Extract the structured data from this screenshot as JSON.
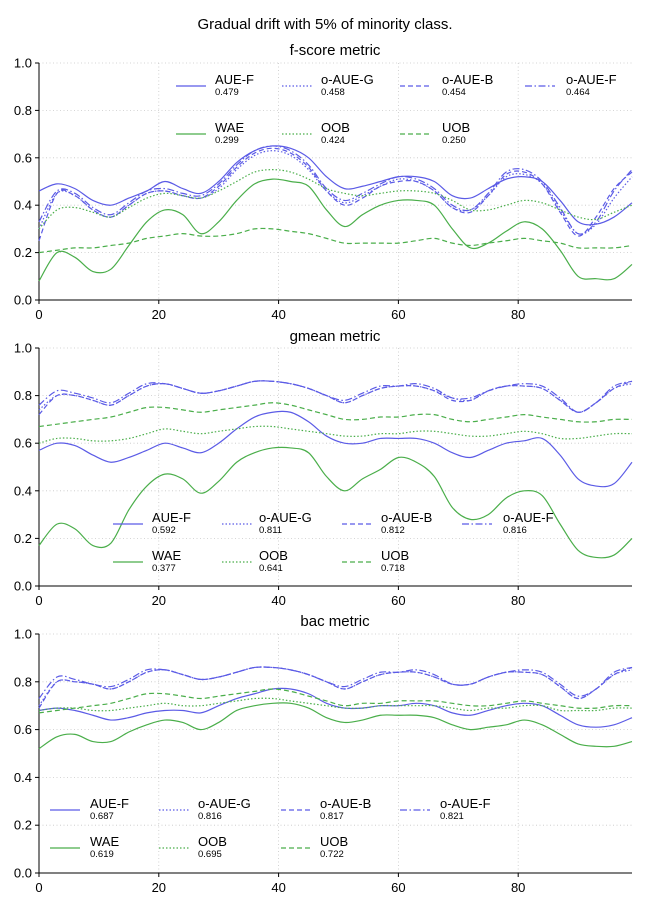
{
  "suptitle": "Gradual drift with 5% of minority class.",
  "chart_data": [
    {
      "type": "line",
      "title": "f-score metric",
      "xlabel": "",
      "ylabel": "",
      "xlim": [
        0,
        99
      ],
      "ylim": [
        0,
        1.0
      ],
      "xticks": [
        "0",
        "20",
        "40",
        "60",
        "80"
      ],
      "yticks": [
        "0.0",
        "0.2",
        "0.4",
        "0.6",
        "0.8",
        "1.0"
      ],
      "grid": true,
      "legend": "top",
      "x": [
        0,
        3,
        6,
        9,
        12,
        15,
        18,
        21,
        24,
        27,
        30,
        33,
        36,
        39,
        42,
        45,
        48,
        51,
        54,
        57,
        60,
        63,
        66,
        69,
        72,
        75,
        78,
        81,
        84,
        87,
        90,
        93,
        96,
        99
      ],
      "series": [
        {
          "name": "AUE-F",
          "score": "0.479",
          "color": "#5b5be6",
          "dash": "solid",
          "values": [
            0.46,
            0.49,
            0.47,
            0.42,
            0.4,
            0.43,
            0.46,
            0.5,
            0.47,
            0.45,
            0.5,
            0.58,
            0.63,
            0.65,
            0.64,
            0.6,
            0.52,
            0.47,
            0.48,
            0.5,
            0.52,
            0.52,
            0.5,
            0.44,
            0.43,
            0.47,
            0.51,
            0.52,
            0.5,
            0.42,
            0.33,
            0.32,
            0.35,
            0.41
          ]
        },
        {
          "name": "o-AUE-G",
          "score": "0.458",
          "color": "#5b5be6",
          "dash": "dot",
          "values": [
            0.3,
            0.45,
            0.44,
            0.38,
            0.35,
            0.4,
            0.45,
            0.46,
            0.44,
            0.43,
            0.47,
            0.55,
            0.61,
            0.63,
            0.61,
            0.55,
            0.46,
            0.41,
            0.44,
            0.48,
            0.51,
            0.5,
            0.46,
            0.39,
            0.38,
            0.44,
            0.52,
            0.53,
            0.49,
            0.38,
            0.28,
            0.32,
            0.43,
            0.52
          ]
        },
        {
          "name": "o-AUE-B",
          "score": "0.454",
          "color": "#5b5be6",
          "dash": "dash",
          "values": [
            0.25,
            0.45,
            0.44,
            0.38,
            0.35,
            0.4,
            0.45,
            0.46,
            0.44,
            0.43,
            0.48,
            0.56,
            0.62,
            0.64,
            0.62,
            0.56,
            0.46,
            0.4,
            0.43,
            0.48,
            0.5,
            0.5,
            0.46,
            0.39,
            0.37,
            0.44,
            0.53,
            0.54,
            0.49,
            0.37,
            0.27,
            0.35,
            0.47,
            0.54
          ]
        },
        {
          "name": "o-AUE-F",
          "score": "0.464",
          "color": "#5b5be6",
          "dash": "dashdot",
          "values": [
            0.33,
            0.46,
            0.45,
            0.39,
            0.36,
            0.41,
            0.46,
            0.47,
            0.45,
            0.44,
            0.49,
            0.57,
            0.63,
            0.65,
            0.63,
            0.57,
            0.47,
            0.42,
            0.45,
            0.49,
            0.52,
            0.51,
            0.47,
            0.4,
            0.38,
            0.45,
            0.54,
            0.55,
            0.5,
            0.39,
            0.28,
            0.33,
            0.46,
            0.55
          ]
        },
        {
          "name": "WAE",
          "score": "0.299",
          "color": "#4aae4a",
          "dash": "solid",
          "values": [
            0.08,
            0.2,
            0.18,
            0.12,
            0.13,
            0.23,
            0.33,
            0.38,
            0.36,
            0.28,
            0.33,
            0.42,
            0.49,
            0.51,
            0.5,
            0.48,
            0.38,
            0.31,
            0.36,
            0.4,
            0.42,
            0.42,
            0.4,
            0.3,
            0.22,
            0.24,
            0.29,
            0.33,
            0.3,
            0.21,
            0.1,
            0.09,
            0.09,
            0.15
          ]
        },
        {
          "name": "OOB",
          "score": "0.424",
          "color": "#4aae4a",
          "dash": "dot",
          "values": [
            0.3,
            0.38,
            0.39,
            0.37,
            0.35,
            0.39,
            0.43,
            0.45,
            0.44,
            0.43,
            0.46,
            0.5,
            0.54,
            0.55,
            0.54,
            0.51,
            0.47,
            0.45,
            0.44,
            0.45,
            0.46,
            0.46,
            0.45,
            0.42,
            0.38,
            0.38,
            0.4,
            0.42,
            0.41,
            0.38,
            0.35,
            0.34,
            0.37,
            0.4
          ]
        },
        {
          "name": "UOB",
          "score": "0.250",
          "color": "#4aae4a",
          "dash": "dash",
          "values": [
            0.2,
            0.21,
            0.22,
            0.22,
            0.23,
            0.24,
            0.26,
            0.27,
            0.28,
            0.27,
            0.27,
            0.28,
            0.3,
            0.3,
            0.29,
            0.28,
            0.26,
            0.24,
            0.24,
            0.24,
            0.24,
            0.25,
            0.26,
            0.24,
            0.23,
            0.24,
            0.25,
            0.26,
            0.25,
            0.24,
            0.22,
            0.22,
            0.22,
            0.23
          ]
        }
      ]
    },
    {
      "type": "line",
      "title": "gmean metric",
      "xlabel": "",
      "ylabel": "",
      "xlim": [
        0,
        99
      ],
      "ylim": [
        0,
        1.0
      ],
      "xticks": [
        "0",
        "20",
        "40",
        "60",
        "80"
      ],
      "yticks": [
        "0.0",
        "0.2",
        "0.4",
        "0.6",
        "0.8",
        "1.0"
      ],
      "grid": true,
      "legend": "lower center",
      "x": [
        0,
        3,
        6,
        9,
        12,
        15,
        18,
        21,
        24,
        27,
        30,
        33,
        36,
        39,
        42,
        45,
        48,
        51,
        54,
        57,
        60,
        63,
        66,
        69,
        72,
        75,
        78,
        81,
        84,
        87,
        90,
        93,
        96,
        99
      ],
      "series": [
        {
          "name": "AUE-F",
          "score": "0.592",
          "color": "#5b5be6",
          "dash": "solid",
          "values": [
            0.57,
            0.6,
            0.59,
            0.55,
            0.52,
            0.54,
            0.57,
            0.6,
            0.58,
            0.56,
            0.6,
            0.66,
            0.71,
            0.73,
            0.73,
            0.69,
            0.63,
            0.6,
            0.6,
            0.62,
            0.62,
            0.62,
            0.6,
            0.56,
            0.54,
            0.57,
            0.6,
            0.61,
            0.62,
            0.55,
            0.45,
            0.42,
            0.43,
            0.52
          ]
        },
        {
          "name": "o-AUE-G",
          "score": "0.811",
          "color": "#5b5be6",
          "dash": "dot",
          "values": [
            0.74,
            0.8,
            0.8,
            0.78,
            0.76,
            0.8,
            0.84,
            0.85,
            0.83,
            0.81,
            0.82,
            0.84,
            0.86,
            0.86,
            0.85,
            0.83,
            0.8,
            0.77,
            0.8,
            0.83,
            0.84,
            0.84,
            0.82,
            0.79,
            0.78,
            0.82,
            0.84,
            0.84,
            0.83,
            0.78,
            0.73,
            0.77,
            0.83,
            0.85
          ]
        },
        {
          "name": "o-AUE-B",
          "score": "0.812",
          "color": "#5b5be6",
          "dash": "dash",
          "values": [
            0.72,
            0.8,
            0.8,
            0.78,
            0.76,
            0.8,
            0.84,
            0.85,
            0.83,
            0.81,
            0.82,
            0.84,
            0.86,
            0.86,
            0.85,
            0.83,
            0.8,
            0.77,
            0.8,
            0.83,
            0.84,
            0.84,
            0.82,
            0.78,
            0.78,
            0.82,
            0.84,
            0.84,
            0.83,
            0.78,
            0.73,
            0.77,
            0.83,
            0.86
          ]
        },
        {
          "name": "o-AUE-F",
          "score": "0.816",
          "color": "#5b5be6",
          "dash": "dashdot",
          "values": [
            0.76,
            0.82,
            0.81,
            0.79,
            0.77,
            0.81,
            0.85,
            0.85,
            0.83,
            0.81,
            0.82,
            0.84,
            0.86,
            0.86,
            0.85,
            0.83,
            0.8,
            0.78,
            0.81,
            0.84,
            0.84,
            0.85,
            0.83,
            0.79,
            0.79,
            0.82,
            0.84,
            0.85,
            0.84,
            0.79,
            0.73,
            0.77,
            0.84,
            0.86
          ]
        },
        {
          "name": "WAE",
          "score": "0.377",
          "color": "#4aae4a",
          "dash": "solid",
          "values": [
            0.17,
            0.26,
            0.24,
            0.17,
            0.18,
            0.32,
            0.42,
            0.47,
            0.45,
            0.39,
            0.44,
            0.52,
            0.56,
            0.58,
            0.58,
            0.56,
            0.46,
            0.4,
            0.45,
            0.49,
            0.54,
            0.52,
            0.46,
            0.33,
            0.28,
            0.3,
            0.37,
            0.4,
            0.38,
            0.26,
            0.15,
            0.12,
            0.13,
            0.2
          ]
        },
        {
          "name": "OOB",
          "score": "0.641",
          "color": "#4aae4a",
          "dash": "dot",
          "values": [
            0.6,
            0.62,
            0.62,
            0.61,
            0.61,
            0.62,
            0.64,
            0.66,
            0.65,
            0.64,
            0.65,
            0.66,
            0.67,
            0.67,
            0.66,
            0.65,
            0.64,
            0.63,
            0.63,
            0.64,
            0.64,
            0.65,
            0.65,
            0.64,
            0.63,
            0.63,
            0.64,
            0.65,
            0.64,
            0.62,
            0.62,
            0.63,
            0.64,
            0.64
          ]
        },
        {
          "name": "UOB",
          "score": "0.718",
          "color": "#4aae4a",
          "dash": "dash",
          "values": [
            0.67,
            0.68,
            0.69,
            0.7,
            0.71,
            0.73,
            0.75,
            0.75,
            0.74,
            0.73,
            0.74,
            0.75,
            0.76,
            0.77,
            0.76,
            0.74,
            0.72,
            0.7,
            0.7,
            0.71,
            0.71,
            0.72,
            0.72,
            0.7,
            0.69,
            0.7,
            0.71,
            0.72,
            0.71,
            0.7,
            0.69,
            0.69,
            0.7,
            0.7
          ]
        }
      ]
    },
    {
      "type": "line",
      "title": "bac metric",
      "xlabel": "",
      "ylabel": "",
      "xlim": [
        0,
        99
      ],
      "ylim": [
        0,
        1.0
      ],
      "xticks": [
        "0",
        "20",
        "40",
        "60",
        "80"
      ],
      "yticks": [
        "0.0",
        "0.2",
        "0.4",
        "0.6",
        "0.8",
        "1.0"
      ],
      "grid": true,
      "legend": "lower center",
      "x": [
        0,
        3,
        6,
        9,
        12,
        15,
        18,
        21,
        24,
        27,
        30,
        33,
        36,
        39,
        42,
        45,
        48,
        51,
        54,
        57,
        60,
        63,
        66,
        69,
        72,
        75,
        78,
        81,
        84,
        87,
        90,
        93,
        96,
        99
      ],
      "series": [
        {
          "name": "AUE-F",
          "score": "0.687",
          "color": "#5b5be6",
          "dash": "solid",
          "values": [
            0.68,
            0.69,
            0.68,
            0.66,
            0.64,
            0.65,
            0.67,
            0.68,
            0.68,
            0.67,
            0.7,
            0.73,
            0.75,
            0.77,
            0.77,
            0.75,
            0.71,
            0.69,
            0.69,
            0.7,
            0.7,
            0.71,
            0.7,
            0.67,
            0.66,
            0.68,
            0.7,
            0.71,
            0.7,
            0.66,
            0.62,
            0.61,
            0.62,
            0.65
          ]
        },
        {
          "name": "o-AUE-G",
          "score": "0.816",
          "color": "#5b5be6",
          "dash": "dot",
          "values": [
            0.7,
            0.8,
            0.8,
            0.79,
            0.77,
            0.8,
            0.84,
            0.85,
            0.83,
            0.81,
            0.82,
            0.84,
            0.86,
            0.86,
            0.85,
            0.83,
            0.8,
            0.77,
            0.8,
            0.83,
            0.84,
            0.84,
            0.82,
            0.79,
            0.79,
            0.82,
            0.84,
            0.84,
            0.83,
            0.78,
            0.73,
            0.77,
            0.83,
            0.85
          ]
        },
        {
          "name": "o-AUE-B",
          "score": "0.817",
          "color": "#5b5be6",
          "dash": "dash",
          "values": [
            0.69,
            0.8,
            0.8,
            0.79,
            0.77,
            0.8,
            0.84,
            0.85,
            0.83,
            0.81,
            0.82,
            0.84,
            0.86,
            0.86,
            0.85,
            0.83,
            0.8,
            0.77,
            0.8,
            0.83,
            0.84,
            0.84,
            0.82,
            0.79,
            0.79,
            0.82,
            0.84,
            0.84,
            0.83,
            0.78,
            0.73,
            0.77,
            0.83,
            0.86
          ]
        },
        {
          "name": "o-AUE-F",
          "score": "0.821",
          "color": "#5b5be6",
          "dash": "dashdot",
          "values": [
            0.73,
            0.82,
            0.81,
            0.79,
            0.78,
            0.81,
            0.85,
            0.85,
            0.83,
            0.81,
            0.82,
            0.84,
            0.86,
            0.86,
            0.85,
            0.83,
            0.8,
            0.78,
            0.81,
            0.84,
            0.84,
            0.85,
            0.83,
            0.79,
            0.79,
            0.82,
            0.84,
            0.85,
            0.84,
            0.79,
            0.74,
            0.77,
            0.84,
            0.86
          ]
        },
        {
          "name": "WAE",
          "score": "0.619",
          "color": "#4aae4a",
          "dash": "solid",
          "values": [
            0.52,
            0.57,
            0.58,
            0.55,
            0.55,
            0.59,
            0.62,
            0.64,
            0.63,
            0.6,
            0.63,
            0.68,
            0.7,
            0.71,
            0.71,
            0.69,
            0.65,
            0.63,
            0.64,
            0.66,
            0.66,
            0.66,
            0.65,
            0.62,
            0.6,
            0.61,
            0.62,
            0.64,
            0.62,
            0.58,
            0.54,
            0.53,
            0.53,
            0.55
          ]
        },
        {
          "name": "OOB",
          "score": "0.695",
          "color": "#4aae4a",
          "dash": "dot",
          "values": [
            0.68,
            0.69,
            0.69,
            0.68,
            0.68,
            0.69,
            0.7,
            0.71,
            0.7,
            0.7,
            0.71,
            0.72,
            0.73,
            0.73,
            0.72,
            0.71,
            0.7,
            0.69,
            0.69,
            0.7,
            0.7,
            0.7,
            0.7,
            0.69,
            0.68,
            0.69,
            0.69,
            0.7,
            0.7,
            0.68,
            0.68,
            0.68,
            0.69,
            0.69
          ]
        },
        {
          "name": "UOB",
          "score": "0.722",
          "color": "#4aae4a",
          "dash": "dash",
          "values": [
            0.67,
            0.68,
            0.69,
            0.7,
            0.71,
            0.73,
            0.75,
            0.75,
            0.74,
            0.73,
            0.74,
            0.75,
            0.76,
            0.77,
            0.76,
            0.74,
            0.72,
            0.7,
            0.71,
            0.71,
            0.72,
            0.72,
            0.72,
            0.71,
            0.7,
            0.7,
            0.71,
            0.72,
            0.71,
            0.7,
            0.69,
            0.69,
            0.7,
            0.7
          ]
        }
      ]
    }
  ]
}
